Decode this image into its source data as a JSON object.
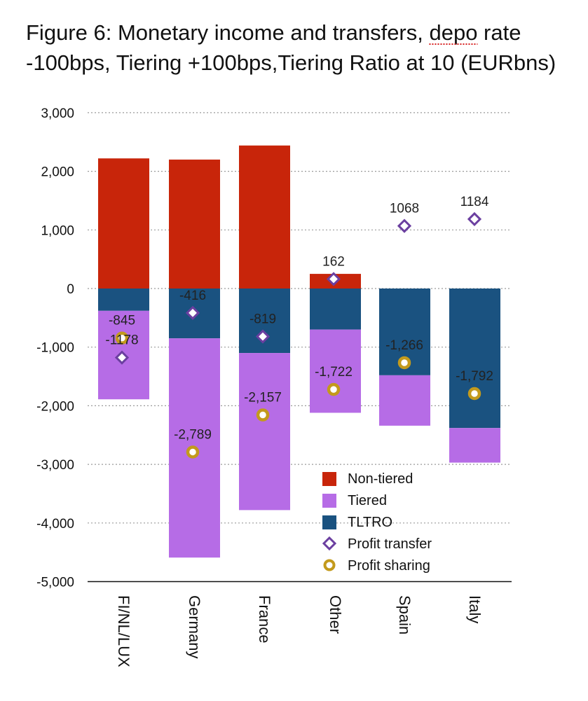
{
  "chart_data": {
    "type": "bar",
    "stacked": true,
    "title_line1": "Figure 6: Monetary income and transfers, depo rate",
    "title_line2": "-100bps, Tiering +100bps,Tiering Ratio at 10 (EURbns)",
    "title_spellcheck_word": "depo",
    "categories": [
      "FI/NL/LUX",
      "Germany",
      "France",
      "Other",
      "Spain",
      "Italy"
    ],
    "series": [
      {
        "name": "Non-tiered",
        "color": "#c8250a",
        "values": [
          2220,
          2200,
          2440,
          250,
          0,
          0
        ]
      },
      {
        "name": "TLTRO",
        "color": "#1a5280",
        "values": [
          -380,
          -850,
          -1100,
          -700,
          -1480,
          -2380
        ]
      },
      {
        "name": "Tiered",
        "color": "#b66ce6",
        "values": [
          -1510,
          -3740,
          -2680,
          -1420,
          -860,
          -590
        ]
      }
    ],
    "markers": [
      {
        "name": "Profit transfer",
        "symbol": "diamond",
        "color": "#6b3fa0",
        "values": [
          -1178,
          -416,
          -819,
          162,
          1068,
          1184
        ],
        "labels": [
          "-1178",
          "-416",
          "-819",
          "162",
          "1068",
          "1184"
        ]
      },
      {
        "name": "Profit sharing",
        "symbol": "circle",
        "color": "#c39a1c",
        "values": [
          -845,
          -2789,
          -2157,
          -1722,
          -1266,
          -1792
        ],
        "labels": [
          "-845",
          "-2,789",
          "-2,157",
          "-1,722",
          "-1,266",
          "-1,792"
        ]
      }
    ],
    "legend_order": [
      "Non-tiered",
      "Tiered",
      "TLTRO",
      "Profit transfer",
      "Profit sharing"
    ],
    "legend_placement": "bottom-right",
    "y_ticks": [
      "3,000",
      "2,000",
      "1,000",
      "0",
      "-1,000",
      "-2,000",
      "-3,000",
      "-4,000",
      "-5,000"
    ],
    "y_tick_values": [
      3000,
      2000,
      1000,
      0,
      -1000,
      -2000,
      -3000,
      -4000,
      -5000
    ],
    "ylim": [
      -5000,
      3000
    ],
    "grid": true
  }
}
